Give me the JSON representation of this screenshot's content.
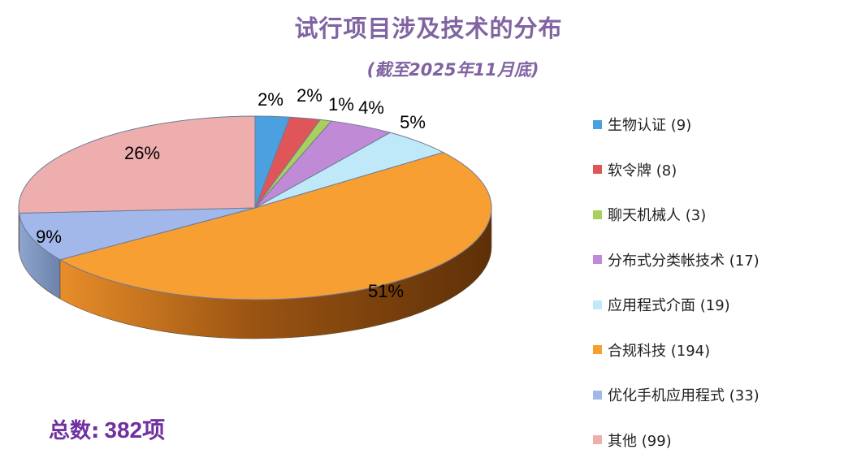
{
  "chart_data": {
    "type": "pie",
    "title": "试行项目涉及技术的分布",
    "subtitle": "(截至2025年11月底)",
    "categories": [
      "生物认证",
      "软令牌",
      "聊天机械人",
      "分布式分类帐技术",
      "应用程式介面",
      "合规科技",
      "优化手机应用程式",
      "其他"
    ],
    "values": [
      9,
      8,
      3,
      17,
      19,
      194,
      33,
      99
    ],
    "percent_labels": [
      "2%",
      "2%",
      "1%",
      "4%",
      "5%",
      "51%",
      "9%",
      "26%"
    ],
    "legend_labels": [
      "生物认证 (9)",
      "软令牌 (8)",
      "聊天机械人 (3)",
      "分布式分类帐技术 (17)",
      "应用程式介面 (19)",
      "合规科技 (194)",
      "优化手机应用程式 (33)",
      "其他 (99)"
    ],
    "colors": [
      "#4ba1e0",
      "#e05558",
      "#a9cf5d",
      "#c08ad6",
      "#bfe8f8",
      "#f89f33",
      "#a2b8ea",
      "#eeaeae"
    ],
    "legend_position": "right"
  },
  "total": {
    "label": "总数:",
    "value": "382项"
  }
}
